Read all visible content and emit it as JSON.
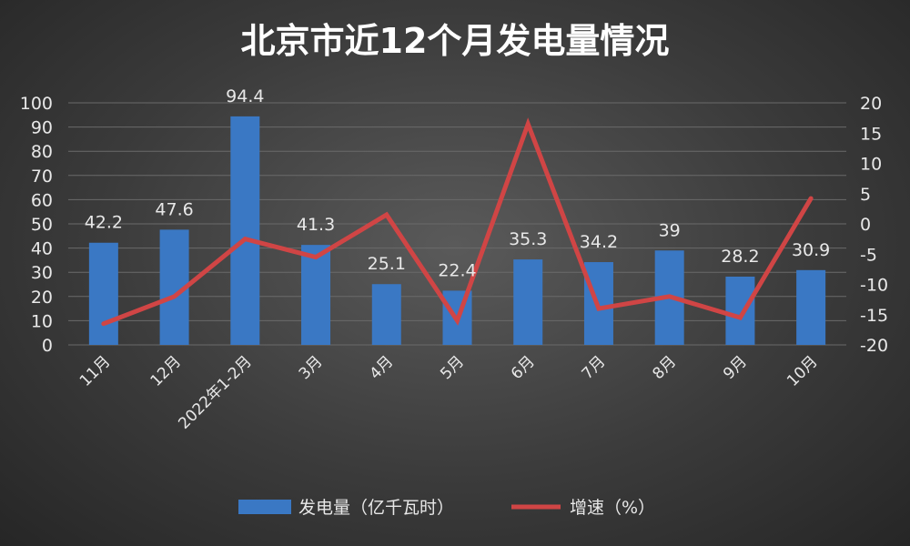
{
  "chart_data": {
    "type": "bar",
    "title": "北京市近12个月发电量情况",
    "categories": [
      "11月",
      "12月",
      "2022年1-2月",
      "3月",
      "4月",
      "5月",
      "6月",
      "7月",
      "8月",
      "9月",
      "10月"
    ],
    "series": [
      {
        "name": "发电量（亿千瓦时）",
        "type": "bar",
        "axis": "left",
        "color": "#3a78c4",
        "values": [
          42.2,
          47.6,
          94.4,
          41.3,
          25.1,
          22.4,
          35.3,
          34.2,
          39,
          28.2,
          30.9
        ],
        "labels": [
          "42.2",
          "47.6",
          "94.4",
          "41.3",
          "25.1",
          "22.4",
          "35.3",
          "34.2",
          "39",
          "28.2",
          "30.9"
        ]
      },
      {
        "name": "增速（%）",
        "type": "line",
        "axis": "right",
        "color": "#d04545",
        "values": [
          -16.5,
          -12,
          -2.5,
          -5.5,
          1.5,
          -16,
          16.5,
          -14,
          -12,
          -15.5,
          4.2
        ]
      }
    ],
    "y_left": {
      "min": 0,
      "max": 100,
      "ticks": [
        "0",
        "10",
        "20",
        "30",
        "40",
        "50",
        "60",
        "70",
        "80",
        "90",
        "100"
      ]
    },
    "y_right": {
      "min": -20,
      "max": 20,
      "ticks": [
        "-20",
        "-15",
        "-10",
        "-5",
        "0",
        "5",
        "10",
        "15",
        "20"
      ]
    },
    "grid": true,
    "legend_position": "bottom"
  }
}
